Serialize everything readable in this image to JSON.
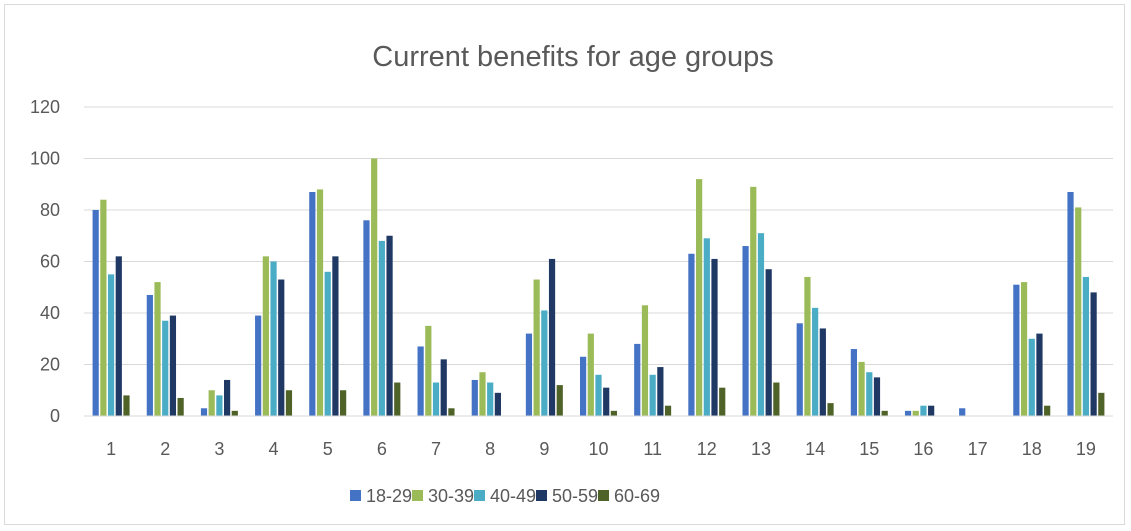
{
  "chart_data": {
    "type": "bar",
    "title": "Current benefits for age groups",
    "xlabel": "",
    "ylabel": "",
    "ylim": [
      0,
      120
    ],
    "yticks": [
      0,
      20,
      40,
      60,
      80,
      100,
      120
    ],
    "grid": true,
    "legend_position": "bottom",
    "categories": [
      "1",
      "2",
      "3",
      "4",
      "5",
      "6",
      "7",
      "8",
      "9",
      "10",
      "11",
      "12",
      "13",
      "14",
      "15",
      "16",
      "17",
      "18",
      "19"
    ],
    "series": [
      {
        "name": "18-29",
        "color": "#4472c4",
        "values": [
          80,
          47,
          3,
          39,
          87,
          76,
          27,
          14,
          32,
          23,
          28,
          63,
          66,
          36,
          26,
          2,
          3,
          51,
          87
        ]
      },
      {
        "name": "30-39",
        "color": "#9bbb59",
        "values": [
          84,
          52,
          10,
          62,
          88,
          100,
          35,
          17,
          53,
          32,
          43,
          92,
          89,
          54,
          21,
          2,
          0,
          52,
          81
        ]
      },
      {
        "name": "40-49",
        "color": "#4bacc6",
        "values": [
          55,
          37,
          8,
          60,
          56,
          68,
          13,
          13,
          41,
          16,
          16,
          69,
          71,
          42,
          17,
          4,
          0,
          30,
          54
        ]
      },
      {
        "name": "50-59",
        "color": "#1f3864",
        "values": [
          62,
          39,
          14,
          53,
          62,
          70,
          22,
          9,
          61,
          11,
          19,
          61,
          57,
          34,
          15,
          4,
          0,
          32,
          48
        ]
      },
      {
        "name": "60-69",
        "color": "#4f6228",
        "values": [
          8,
          7,
          2,
          10,
          10,
          13,
          3,
          0,
          12,
          2,
          4,
          11,
          13,
          5,
          2,
          0,
          0,
          4,
          9
        ]
      }
    ]
  }
}
